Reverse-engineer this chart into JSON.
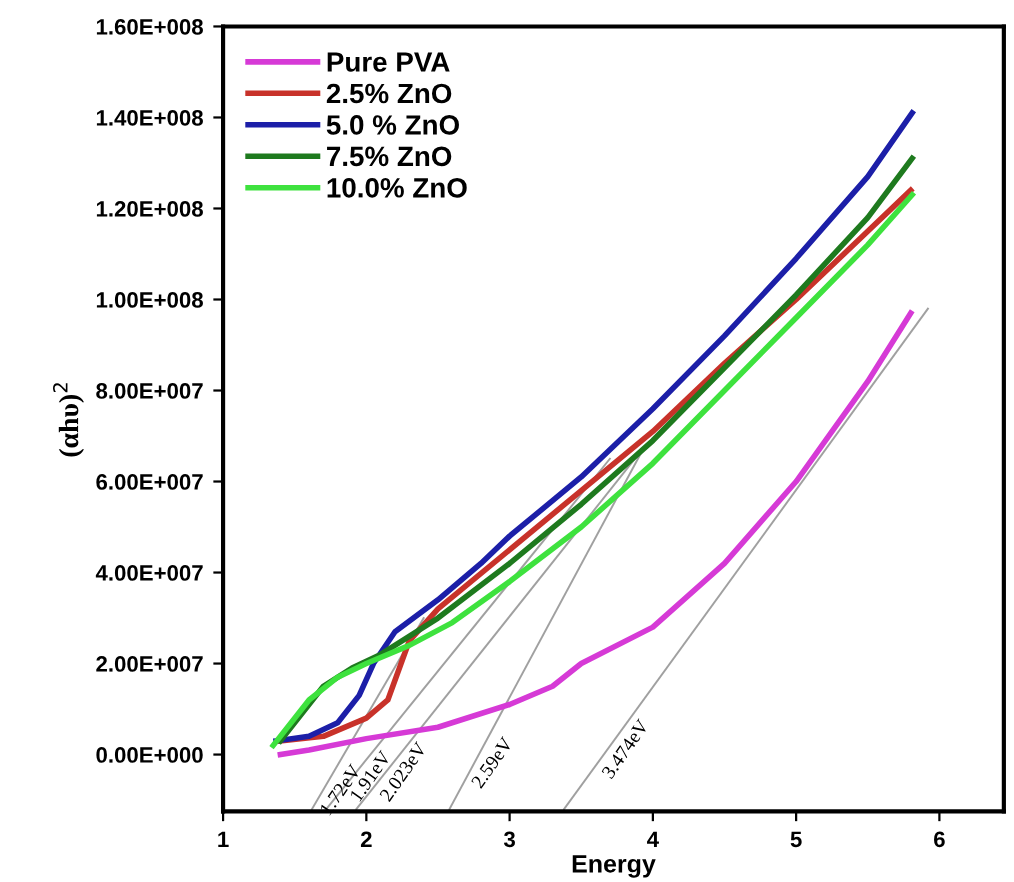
{
  "chart_data": {
    "type": "line",
    "xlabel": "Energy",
    "ylabel": "(αhυ)$^{2}$",
    "xlim": [
      1,
      6.45
    ],
    "xticks": [
      1,
      2,
      3,
      4,
      5,
      6
    ],
    "ylim": [
      -12500000,
      160000000
    ],
    "yticks": [
      {
        "value": 0,
        "label": "0.00E+000"
      },
      {
        "value": 20000000,
        "label": "2.00E+007"
      },
      {
        "value": 40000000,
        "label": "4.00E+007"
      },
      {
        "value": 60000000,
        "label": "6.00E+007"
      },
      {
        "value": 80000000,
        "label": "8.00E+007"
      },
      {
        "value": 100000000,
        "label": "1.00E+008"
      },
      {
        "value": 120000000,
        "label": "1.20E+008"
      },
      {
        "value": 140000000,
        "label": "1.40E+008"
      },
      {
        "value": 160000000,
        "label": "1.60E+008"
      }
    ],
    "grid": false,
    "legend": "top left",
    "marker": "none",
    "line_style": "solid",
    "series": [
      {
        "name": "Pure PVA",
        "color": "#d63ad6",
        "x": [
          1.4,
          1.6,
          2.0,
          2.5,
          3.0,
          3.3,
          3.5,
          4.0,
          4.5,
          5.0,
          5.5,
          5.8
        ],
        "values": [
          0,
          1000000,
          3500000,
          6000000,
          11000000,
          15000000,
          20000000,
          28000000,
          42000000,
          60000000,
          82000000,
          97000000
        ]
      },
      {
        "name": "2.5% ZnO",
        "color": "#c8322a",
        "x": [
          1.4,
          1.7,
          2.0,
          2.15,
          2.3,
          2.5,
          3.0,
          3.5,
          4.0,
          4.5,
          5.0,
          5.5,
          5.8
        ],
        "values": [
          3000000,
          4000000,
          8000000,
          12000000,
          25000000,
          32000000,
          45000000,
          58000000,
          71000000,
          86000000,
          100000000,
          115000000,
          124000000
        ]
      },
      {
        "name": "5.0 % ZnO",
        "color": "#1c1fa8",
        "x": [
          1.37,
          1.6,
          1.8,
          1.95,
          2.05,
          2.2,
          2.5,
          2.8,
          3.0,
          3.5,
          4.0,
          4.5,
          5.0,
          5.5,
          5.81
        ],
        "values": [
          3000000,
          4000000,
          7000000,
          13000000,
          20000000,
          27000000,
          34000000,
          42000000,
          48000000,
          61000000,
          76000000,
          92000000,
          109000000,
          127000000,
          141000000
        ]
      },
      {
        "name": "7.5% ZnO",
        "color": "#1e7a1e",
        "x": [
          1.4,
          1.7,
          1.9,
          2.1,
          2.5,
          3.0,
          3.5,
          4.0,
          4.5,
          5.0,
          5.5,
          5.81
        ],
        "values": [
          3000000,
          15000000,
          19000000,
          22000000,
          30000000,
          42000000,
          55000000,
          69000000,
          85000000,
          101000000,
          118000000,
          131000000
        ]
      },
      {
        "name": "10.0% ZnO",
        "color": "#3ee23e",
        "x": [
          1.35,
          1.6,
          1.8,
          2.0,
          2.3,
          2.6,
          3.0,
          3.5,
          4.0,
          4.5,
          5.0,
          5.5,
          5.81
        ],
        "values": [
          2000000,
          12000000,
          17000000,
          20000000,
          24000000,
          29000000,
          38000000,
          50000000,
          64000000,
          80000000,
          96000000,
          112000000,
          123000000
        ]
      },
      {
        "color": "#a0a0a0",
        "x": [
          1.62,
          2.4
        ],
        "values": [
          -12000000,
          30000000
        ]
      },
      {
        "color": "#a0a0a0",
        "x": [
          1.72,
          3.7
        ],
        "values": [
          -12000000,
          65000000
        ]
      },
      {
        "color": "#a0a0a0",
        "x": [
          1.93,
          3.9
        ],
        "values": [
          -12000000,
          66000000
        ]
      },
      {
        "color": "#a0a0a0",
        "x": [
          2.58,
          3.93
        ],
        "values": [
          -12000000,
          67000000
        ]
      },
      {
        "color": "#a0a0a0",
        "x": [
          3.38,
          5.92
        ],
        "values": [
          -12000000,
          98000000
        ]
      }
    ],
    "annotations": [
      {
        "text": "1.72eV",
        "x": 1.69,
        "y": -8000000
      },
      {
        "text": "1.91eV",
        "x": 1.9,
        "y": -5000000
      },
      {
        "text": "2.023eV",
        "x": 2.13,
        "y": -4000000
      },
      {
        "text": "2.59eV",
        "x": 2.75,
        "y": -2000000
      },
      {
        "text": "3.474eV",
        "x": 3.68,
        "y": 1000000
      }
    ]
  }
}
